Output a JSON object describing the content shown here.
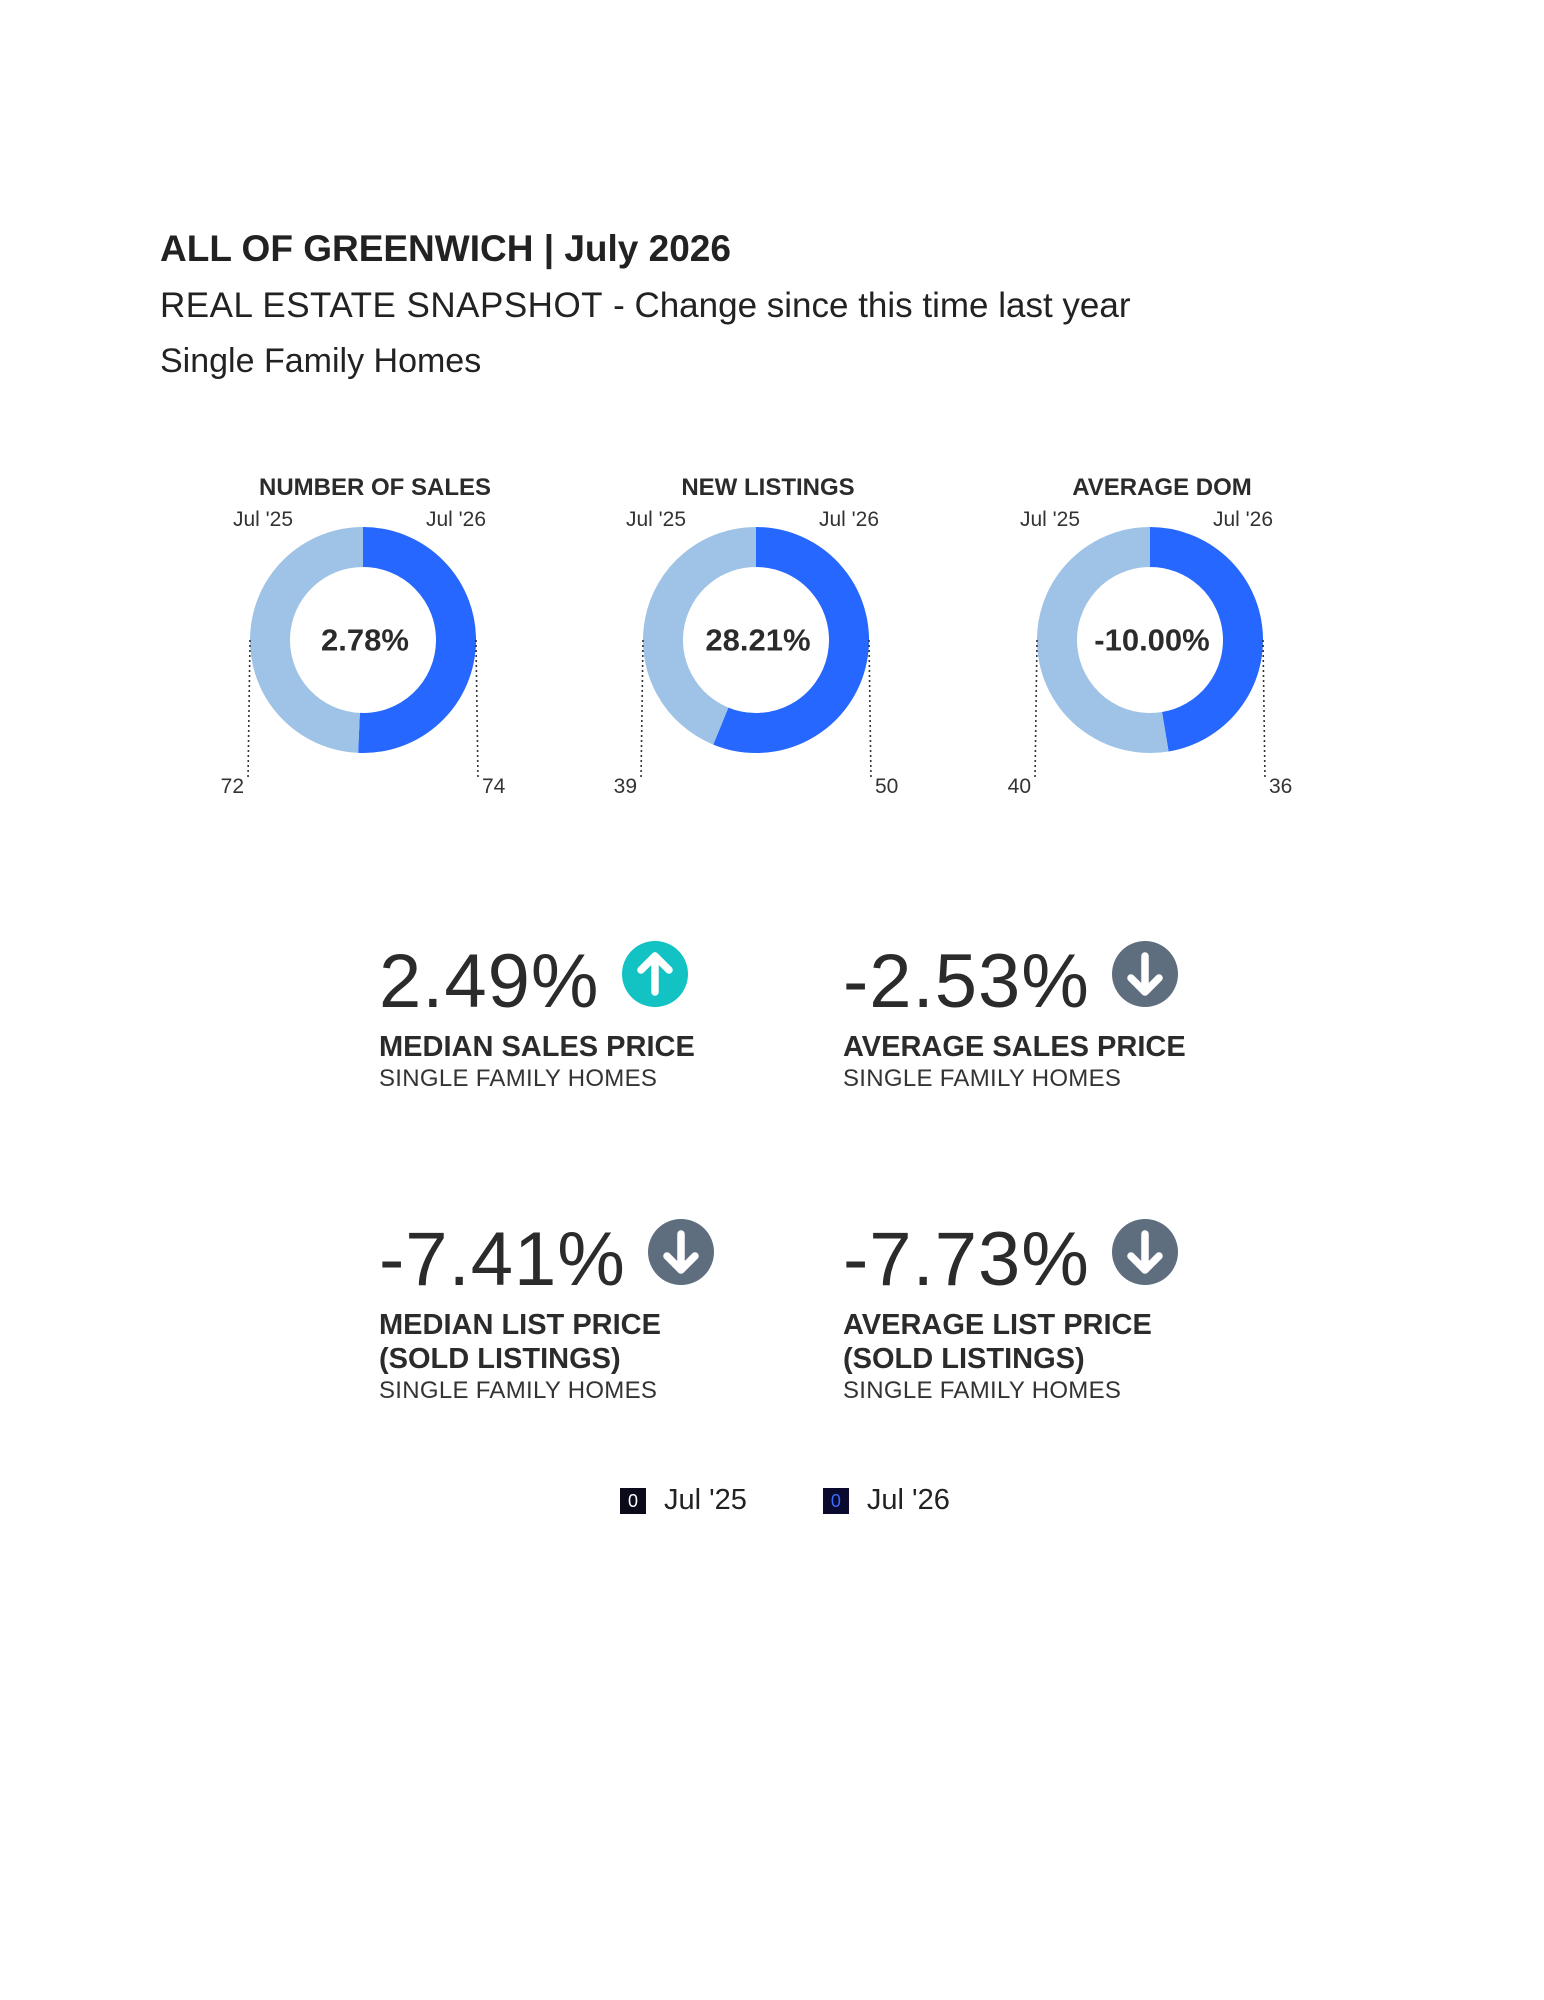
{
  "header": {
    "title": "ALL OF GREENWICH | July 2026",
    "subtitle": "REAL ESTATE SNAPSHOT",
    "subtitle_change": "- Change since this time last year",
    "category": "Single Family Homes"
  },
  "colors": {
    "prior": "#9ec3e6",
    "current": "#2567ff",
    "up": "#13c3c3",
    "down": "#5f6e7f"
  },
  "chart_data": [
    {
      "type": "pie",
      "title": "NUMBER OF SALES",
      "categories": [
        "Jul '25",
        "Jul '26"
      ],
      "values": [
        72,
        74
      ],
      "center_label": "2.78%"
    },
    {
      "type": "pie",
      "title": "NEW LISTINGS",
      "categories": [
        "Jul '25",
        "Jul '26"
      ],
      "values": [
        39,
        50
      ],
      "center_label": "28.21%"
    },
    {
      "type": "pie",
      "title": "AVERAGE DOM",
      "categories": [
        "Jul '25",
        "Jul '26"
      ],
      "values": [
        40,
        36
      ],
      "center_label": "-10.00%"
    }
  ],
  "stats": [
    {
      "pct": "2.49%",
      "direction": "up",
      "icon": "arrow-up-icon",
      "label": "MEDIAN SALES PRICE",
      "label2": "",
      "sub": "SINGLE FAMILY HOMES"
    },
    {
      "pct": "-2.53%",
      "direction": "down",
      "icon": "arrow-down-icon",
      "label": "AVERAGE SALES PRICE",
      "label2": "",
      "sub": "SINGLE FAMILY HOMES"
    },
    {
      "pct": "-7.41%",
      "direction": "down",
      "icon": "arrow-down-icon",
      "label": "MEDIAN LIST PRICE",
      "label2": "(SOLD LISTINGS)",
      "sub": "SINGLE FAMILY HOMES"
    },
    {
      "pct": "-7.73%",
      "direction": "down",
      "icon": "arrow-down-icon",
      "label": "AVERAGE LIST PRICE",
      "label2": "(SOLD LISTINGS)",
      "sub": "SINGLE FAMILY HOMES"
    }
  ],
  "legend": [
    {
      "label": "Jul '25",
      "glyph": "0",
      "swatch": "#0a0a1a",
      "glyph_color": "#ffffff"
    },
    {
      "label": "Jul '26",
      "glyph": "0",
      "swatch": "#0a0a2e",
      "glyph_color": "#3a6bff"
    }
  ]
}
